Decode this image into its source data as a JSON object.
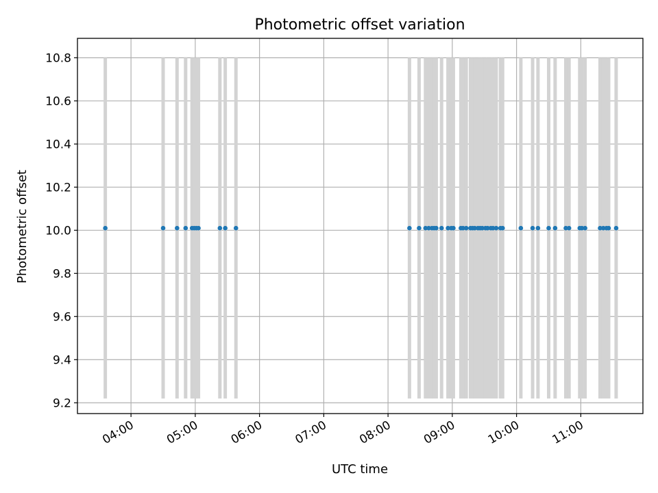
{
  "chart_data": {
    "type": "scatter",
    "title": "Photometric offset variation",
    "xlabel": "UTC time",
    "ylabel": "Photometric offset",
    "x_ticks": [
      "04:00",
      "05:00",
      "06:00",
      "07:00",
      "08:00",
      "09:00",
      "10:00",
      "11:00"
    ],
    "y_ticks": [
      "9.2",
      "9.4",
      "9.6",
      "9.8",
      "10.0",
      "10.2",
      "10.4",
      "10.6",
      "10.8"
    ],
    "xlim": [
      "03:10",
      "11:58"
    ],
    "ylim": [
      9.15,
      10.89
    ],
    "grid": true,
    "errorbar_color": "#d3d3d3",
    "marker_color": "#1f77b4",
    "error_range": [
      9.22,
      10.8
    ],
    "times": [
      "03:36",
      "04:30",
      "04:43",
      "04:51",
      "04:57",
      "04:59",
      "05:01",
      "05:03",
      "05:23",
      "05:28",
      "05:38",
      "08:20",
      "08:29",
      "08:35",
      "08:38",
      "08:41",
      "08:43",
      "08:45",
      "08:50",
      "08:56",
      "08:59",
      "09:01",
      "09:08",
      "09:10",
      "09:13",
      "09:17",
      "09:19",
      "09:21",
      "09:24",
      "09:26",
      "09:28",
      "09:31",
      "09:33",
      "09:36",
      "09:38",
      "09:41",
      "09:45",
      "09:47",
      "10:04",
      "10:15",
      "10:20",
      "10:30",
      "10:36",
      "10:46",
      "10:49",
      "10:59",
      "11:01",
      "11:04",
      "11:18",
      "11:21",
      "11:24",
      "11:26",
      "11:33"
    ],
    "values": [
      10.01,
      10.01,
      10.01,
      10.01,
      10.01,
      10.01,
      10.01,
      10.01,
      10.01,
      10.01,
      10.01,
      10.01,
      10.01,
      10.01,
      10.01,
      10.01,
      10.01,
      10.01,
      10.01,
      10.01,
      10.01,
      10.01,
      10.01,
      10.01,
      10.01,
      10.01,
      10.01,
      10.01,
      10.01,
      10.01,
      10.01,
      10.01,
      10.01,
      10.01,
      10.01,
      10.01,
      10.01,
      10.01,
      10.01,
      10.01,
      10.01,
      10.01,
      10.01,
      10.01,
      10.01,
      10.01,
      10.01,
      10.01,
      10.01,
      10.01,
      10.01,
      10.01,
      10.01
    ]
  }
}
